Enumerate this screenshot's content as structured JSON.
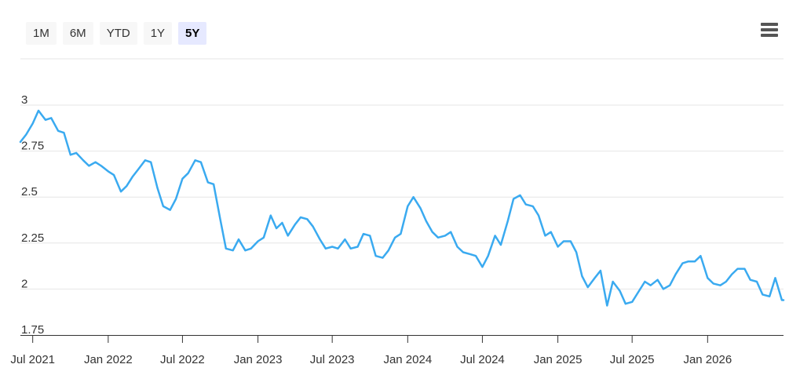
{
  "range_selector": {
    "buttons": [
      {
        "label": "1M",
        "selected": false
      },
      {
        "label": "6M",
        "selected": false
      },
      {
        "label": "YTD",
        "selected": false
      },
      {
        "label": "1Y",
        "selected": false
      },
      {
        "label": "5Y",
        "selected": true
      }
    ]
  },
  "menu": {
    "icon": "hamburger-menu-icon"
  },
  "colors": {
    "line": "#3aaaf0",
    "grid": "#e6e6e6",
    "axis": "#333333"
  },
  "chart_data": {
    "type": "line",
    "title": "",
    "xlabel": "",
    "ylabel": "",
    "ylim": [
      1.75,
      3.0
    ],
    "xlim": [
      "2021-06-01",
      "2026-07-05"
    ],
    "y_ticks": [
      1.75,
      2,
      2.25,
      2.5,
      2.75,
      3
    ],
    "y_tick_labels": [
      "1.75",
      "2",
      "2.25",
      "2.5",
      "2.75",
      "3"
    ],
    "x_ticks": [
      "2021-07-01",
      "2022-01-01",
      "2022-07-01",
      "2023-01-01",
      "2023-07-01",
      "2024-01-01",
      "2024-07-01",
      "2025-01-01",
      "2025-07-01",
      "2026-01-01"
    ],
    "x_tick_labels": [
      "Jul 2021",
      "Jan 2022",
      "Jul 2022",
      "Jan 2023",
      "Jul 2023",
      "Jan 2024",
      "Jul 2024",
      "Jan 2025",
      "Jul 2025",
      "Jan 2026"
    ],
    "grid": true,
    "legend": "none",
    "series": [
      {
        "x": [
          "2021-06-01",
          "2021-06-15",
          "2021-07-01",
          "2021-07-15",
          "2021-08-01",
          "2021-08-15",
          "2021-09-01",
          "2021-09-15",
          "2021-10-01",
          "2021-10-15",
          "2021-11-01",
          "2021-11-15",
          "2021-12-01",
          "2021-12-15",
          "2022-01-01",
          "2022-01-15",
          "2022-02-01",
          "2022-02-15",
          "2022-03-01",
          "2022-03-15",
          "2022-04-01",
          "2022-04-15",
          "2022-05-01",
          "2022-05-15",
          "2022-06-01",
          "2022-06-15",
          "2022-07-01",
          "2022-07-15",
          "2022-08-01",
          "2022-08-15",
          "2022-09-01",
          "2022-09-15",
          "2022-10-01",
          "2022-10-15",
          "2022-11-01",
          "2022-11-15",
          "2022-12-01",
          "2022-12-15",
          "2023-01-01",
          "2023-01-15",
          "2023-02-01",
          "2023-02-15",
          "2023-03-01",
          "2023-03-15",
          "2023-04-01",
          "2023-04-15",
          "2023-05-01",
          "2023-05-15",
          "2023-06-01",
          "2023-06-15",
          "2023-07-01",
          "2023-07-15",
          "2023-08-01",
          "2023-08-15",
          "2023-09-01",
          "2023-09-15",
          "2023-10-01",
          "2023-10-15",
          "2023-11-01",
          "2023-11-15",
          "2023-12-01",
          "2023-12-15",
          "2024-01-01",
          "2024-01-15",
          "2024-02-01",
          "2024-02-15",
          "2024-03-01",
          "2024-03-15",
          "2024-04-01",
          "2024-04-15",
          "2024-05-01",
          "2024-05-15",
          "2024-06-01",
          "2024-06-15",
          "2024-07-01",
          "2024-07-15",
          "2024-08-01",
          "2024-08-15",
          "2024-09-01",
          "2024-09-15",
          "2024-10-01",
          "2024-10-15",
          "2024-11-01",
          "2024-11-15",
          "2024-12-01",
          "2024-12-15",
          "2025-01-01",
          "2025-01-15",
          "2025-02-01",
          "2025-02-15",
          "2025-03-01",
          "2025-03-15",
          "2025-04-01",
          "2025-04-15",
          "2025-05-01",
          "2025-05-15",
          "2025-06-01",
          "2025-06-15",
          "2025-07-01",
          "2025-07-15",
          "2025-08-01",
          "2025-08-15",
          "2025-09-01",
          "2025-09-15",
          "2025-10-01",
          "2025-10-15",
          "2025-11-01",
          "2025-11-15",
          "2025-12-01",
          "2025-12-15",
          "2026-01-01",
          "2026-01-15",
          "2026-02-01",
          "2026-02-15",
          "2026-03-01",
          "2026-03-15",
          "2026-04-01",
          "2026-04-15",
          "2026-05-01",
          "2026-05-15",
          "2026-06-01",
          "2026-06-15",
          "2026-07-01",
          "2026-07-05"
        ],
        "y": [
          2.8,
          2.84,
          2.9,
          2.97,
          2.92,
          2.93,
          2.86,
          2.85,
          2.73,
          2.74,
          2.7,
          2.67,
          2.69,
          2.67,
          2.64,
          2.62,
          2.53,
          2.56,
          2.61,
          2.65,
          2.7,
          2.69,
          2.55,
          2.45,
          2.43,
          2.49,
          2.6,
          2.63,
          2.7,
          2.69,
          2.58,
          2.57,
          2.38,
          2.22,
          2.21,
          2.27,
          2.21,
          2.22,
          2.26,
          2.28,
          2.4,
          2.33,
          2.36,
          2.29,
          2.35,
          2.39,
          2.38,
          2.34,
          2.27,
          2.22,
          2.23,
          2.22,
          2.27,
          2.22,
          2.23,
          2.3,
          2.29,
          2.18,
          2.17,
          2.21,
          2.28,
          2.3,
          2.45,
          2.5,
          2.44,
          2.37,
          2.31,
          2.28,
          2.29,
          2.31,
          2.23,
          2.2,
          2.19,
          2.18,
          2.12,
          2.18,
          2.29,
          2.24,
          2.37,
          2.49,
          2.51,
          2.46,
          2.45,
          2.4,
          2.29,
          2.31,
          2.23,
          2.26,
          2.26,
          2.2,
          2.07,
          2.01,
          2.06,
          2.1,
          1.91,
          2.04,
          1.99,
          1.92,
          1.93,
          1.98,
          2.04,
          2.02,
          2.05,
          2.0,
          2.02,
          2.08,
          2.14,
          2.15,
          2.15,
          2.18,
          2.06,
          2.03,
          2.02,
          2.04,
          2.08,
          2.11,
          2.11,
          2.05,
          2.04,
          1.97,
          1.96,
          2.06,
          1.94,
          1.94
        ]
      }
    ]
  }
}
